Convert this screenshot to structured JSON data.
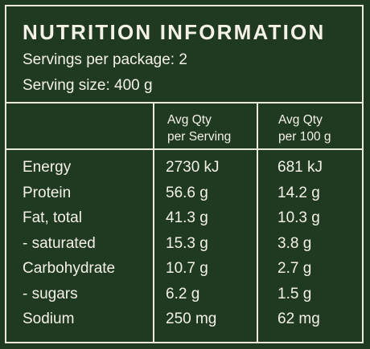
{
  "title": "NUTRITION INFORMATION",
  "servings_per_package": "Servings per package: 2",
  "serving_size": "Serving size: 400 g",
  "columns": {
    "per_serving": [
      "Avg Qty",
      "per Serving"
    ],
    "per_100g": [
      "Avg Qty",
      "per 100 g"
    ]
  },
  "rows": [
    {
      "nutrient": "Energy",
      "per_serving": "2730 kJ",
      "per_100g": "681 kJ"
    },
    {
      "nutrient": "Protein",
      "per_serving": "56.6 g",
      "per_100g": "14.2 g"
    },
    {
      "nutrient": "Fat, total",
      "per_serving": "41.3 g",
      "per_100g": "10.3 g"
    },
    {
      "nutrient": "- saturated",
      "per_serving": "15.3 g",
      "per_100g": "3.8 g"
    },
    {
      "nutrient": "Carbohydrate",
      "per_serving": "10.7 g",
      "per_100g": "2.7 g"
    },
    {
      "nutrient": "- sugars",
      "per_serving": "6.2 g",
      "per_100g": "1.5 g"
    },
    {
      "nutrient": "Sodium",
      "per_serving": "250 mg",
      "per_100g": "62 mg"
    }
  ],
  "colors": {
    "background": "#1f3a21",
    "text": "#f4f1e6",
    "rule": "#ebe8dc"
  }
}
